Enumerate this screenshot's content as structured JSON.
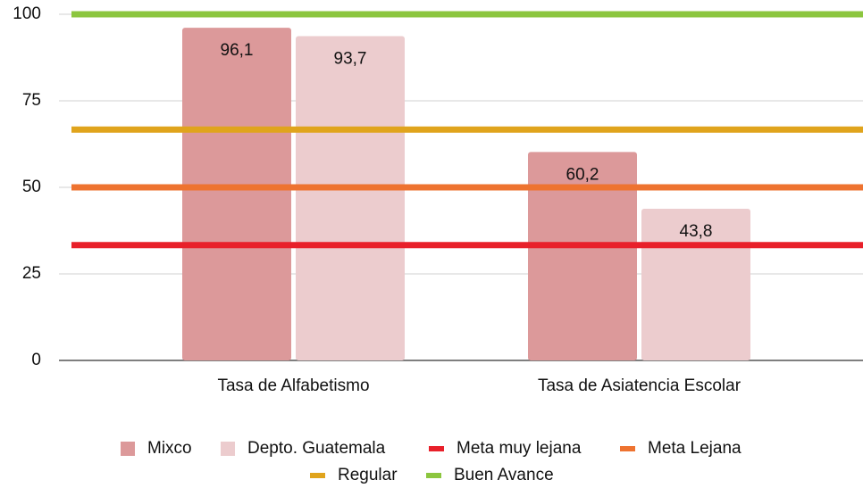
{
  "chart_data": {
    "type": "bar",
    "categories": [
      "Tasa de Alfabetismo",
      "Tasa de Asiatencia Escolar"
    ],
    "series": [
      {
        "name": "Mixco",
        "color": "#dc999a",
        "values": [
          96.1,
          60.2
        ],
        "value_labels": [
          "96,1",
          "60,2"
        ]
      },
      {
        "name": "Depto. Guatemala",
        "color": "#ecccce",
        "values": [
          93.7,
          43.8
        ],
        "value_labels": [
          "93,7",
          "43,8"
        ]
      }
    ],
    "reference_lines": [
      {
        "name": "Meta muy lejana",
        "color": "#e8202a",
        "value": 33.3
      },
      {
        "name": "Meta Lejana",
        "color": "#ee7330",
        "value": 50
      },
      {
        "name": "Regular",
        "color": "#e0a41c",
        "value": 66.7
      },
      {
        "name": "Buen Avance",
        "color": "#8cc63f",
        "value": 100
      }
    ],
    "ylim": [
      0,
      100
    ],
    "yticks": [
      0,
      25,
      50,
      75,
      100
    ],
    "grid": true,
    "legend": "bottom"
  }
}
